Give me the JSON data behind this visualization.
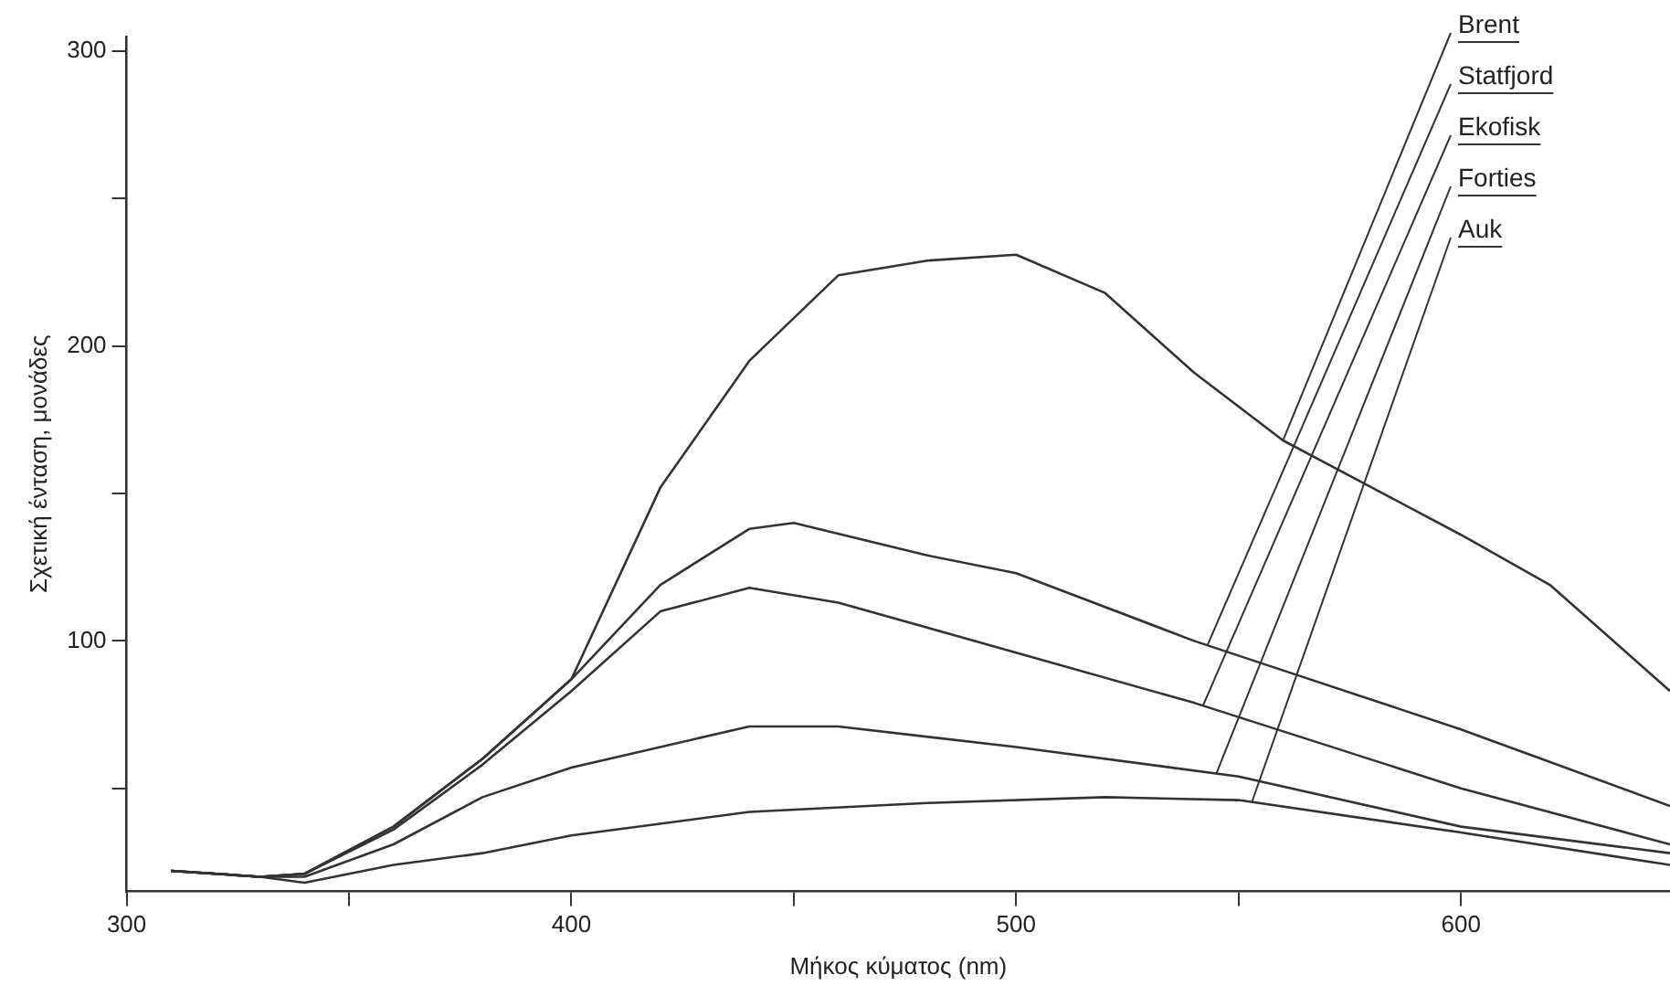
{
  "chart_data": {
    "type": "line",
    "xlabel": "Μήκος κύματος (nm)",
    "ylabel": "Σχετική ένταση, μονάδες",
    "xlim": [
      300,
      647
    ],
    "ylim": [
      15,
      305
    ],
    "xticks": [
      300,
      {
        "value": 350,
        "label": null
      },
      400,
      {
        "value": 450,
        "label": null
      },
      500,
      {
        "value": 550,
        "label": null
      },
      600
    ],
    "yticks": [
      {
        "value": 50,
        "label": null
      },
      100,
      {
        "value": 150,
        "label": null
      },
      200,
      {
        "value": 250,
        "label": null
      },
      300
    ],
    "grid": false,
    "legend": "top right",
    "marker": "none",
    "line_style": "solid",
    "series": [
      {
        "name": "Brent",
        "color": "#333333",
        "x": [
          310,
          330,
          340,
          360,
          380,
          400,
          420,
          440,
          460,
          480,
          500,
          520,
          540,
          560,
          580,
          600,
          620,
          647
        ],
        "values": [
          22,
          20,
          21,
          37,
          60,
          87,
          152,
          195,
          224,
          229,
          231,
          218,
          191,
          168,
          152,
          136,
          119,
          83
        ]
      },
      {
        "name": "Statfjord",
        "color": "#333333",
        "x": [
          310,
          330,
          340,
          360,
          380,
          400,
          420,
          440,
          450,
          480,
          500,
          540,
          560,
          600,
          647
        ],
        "values": [
          22,
          20,
          21,
          37,
          60,
          87,
          119,
          138,
          140,
          129,
          123,
          100,
          90,
          70,
          44
        ]
      },
      {
        "name": "Ekofisk",
        "color": "#333333",
        "x": [
          310,
          330,
          340,
          360,
          380,
          400,
          420,
          440,
          460,
          500,
          540,
          600,
          647
        ],
        "values": [
          22,
          20,
          21,
          36,
          58,
          83,
          110,
          118,
          113,
          96,
          79,
          50,
          31
        ]
      },
      {
        "name": "Forties",
        "color": "#333333",
        "x": [
          310,
          330,
          340,
          360,
          380,
          400,
          420,
          440,
          460,
          500,
          550,
          600,
          647
        ],
        "values": [
          22,
          20,
          20,
          31,
          47,
          57,
          64,
          71,
          71,
          64,
          54,
          37,
          28
        ]
      },
      {
        "name": "Auk",
        "color": "#333333",
        "x": [
          310,
          330,
          340,
          360,
          380,
          400,
          440,
          480,
          520,
          550,
          600,
          647
        ],
        "values": [
          22,
          20,
          18,
          24,
          28,
          34,
          42,
          45,
          47,
          46,
          35,
          24
        ]
      }
    ]
  }
}
